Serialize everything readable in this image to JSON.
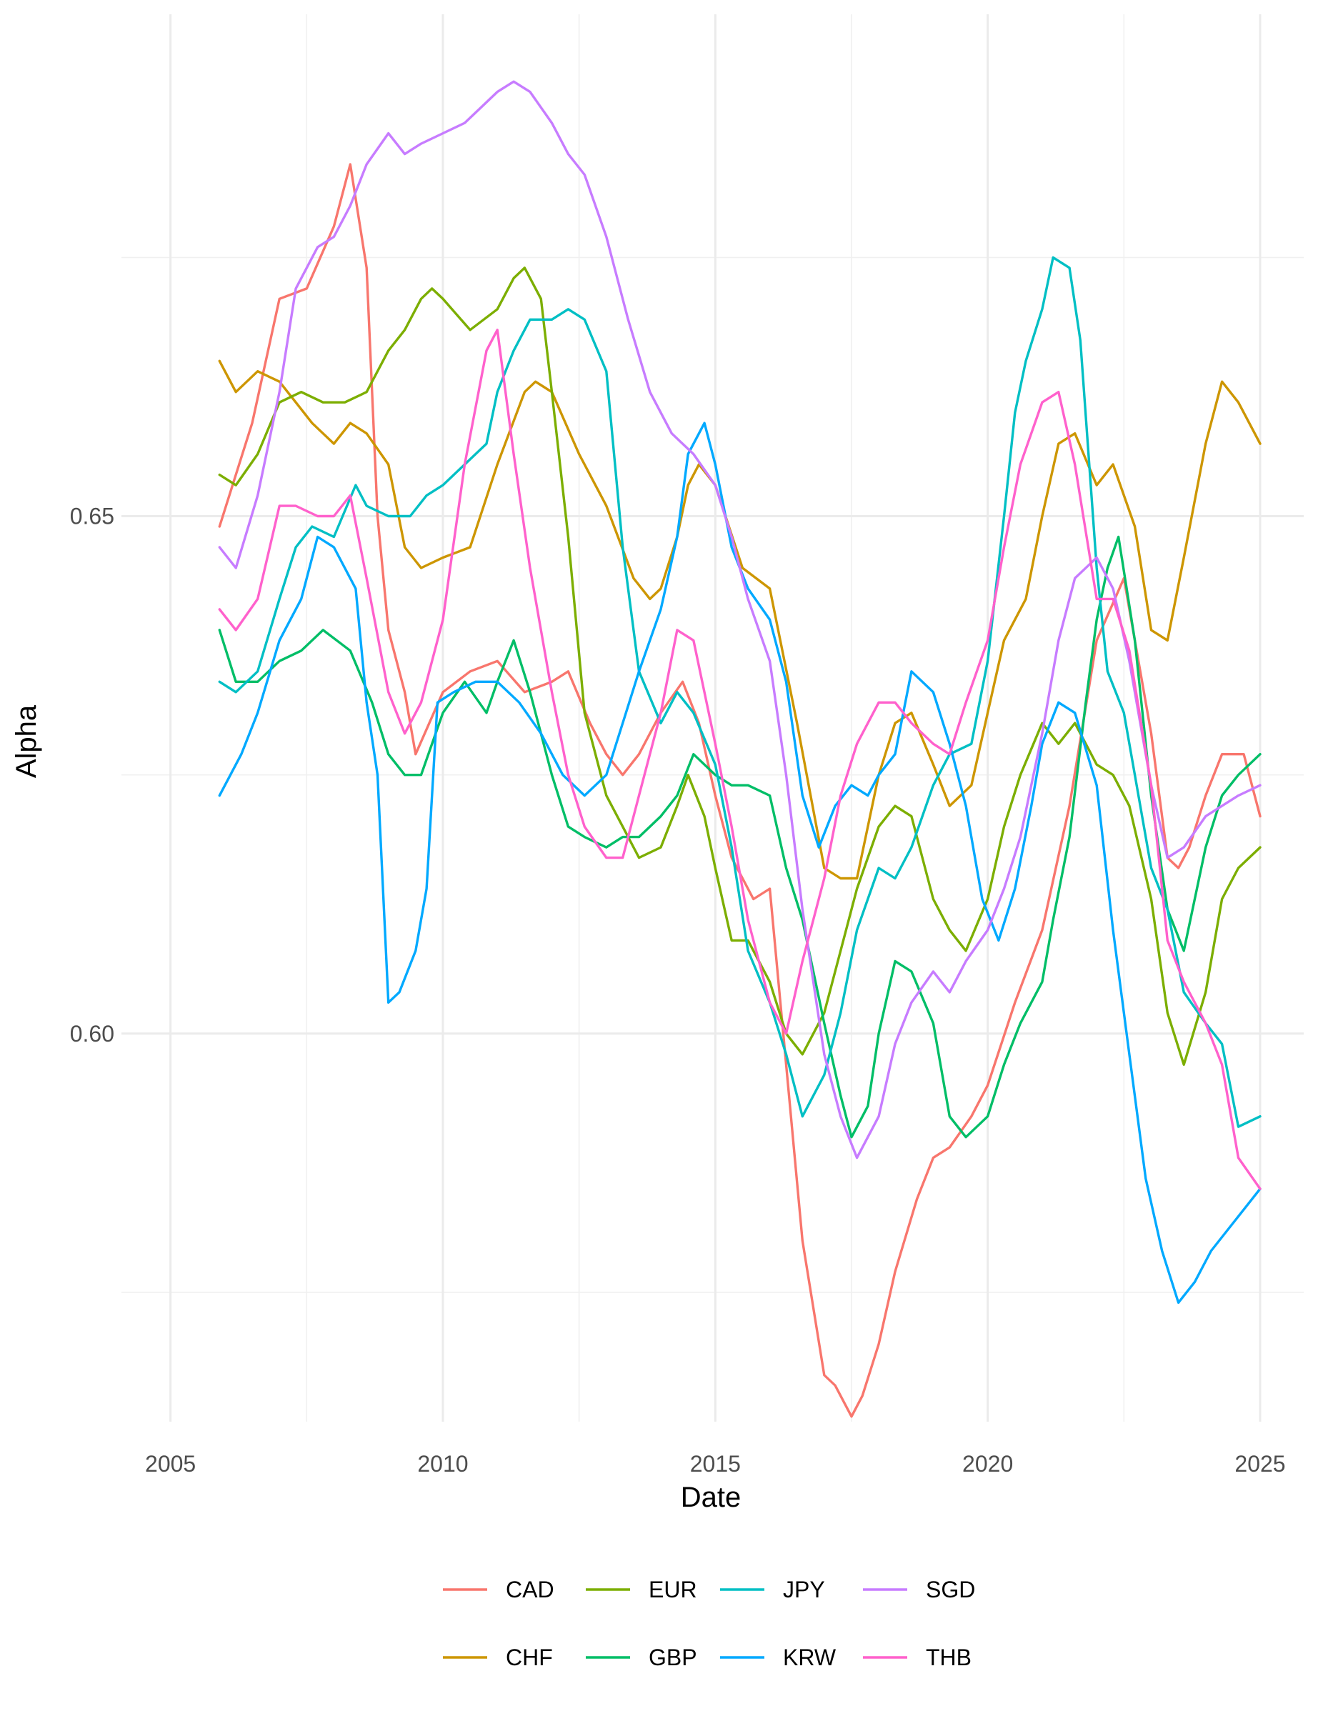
{
  "chart_data": {
    "type": "line",
    "title": "",
    "xlabel": "Date",
    "ylabel": "Alpha",
    "xlim": [
      2004.1,
      2025.8
    ],
    "ylim": [
      0.5625,
      0.6985
    ],
    "x_ticks": [
      2005,
      2010,
      2015,
      2020,
      2025
    ],
    "x_tick_labels": [
      "2005",
      "2010",
      "2015",
      "2020",
      "2025"
    ],
    "y_ticks": [
      0.6,
      0.65
    ],
    "y_tick_labels": [
      "0.60",
      "0.65"
    ],
    "grid": true,
    "legend_position": "bottom",
    "series": [
      {
        "name": "CAD",
        "color": "#F8766D",
        "x": [
          2005.9,
          2006.5,
          2007.0,
          2007.5,
          2008.0,
          2008.3,
          2008.6,
          2008.8,
          2009.0,
          2009.3,
          2009.5,
          2010.0,
          2010.5,
          2011.0,
          2011.5,
          2012.0,
          2012.3,
          2012.7,
          2013.0,
          2013.3,
          2013.6,
          2014.0,
          2014.4,
          2014.7,
          2015.0,
          2015.3,
          2015.7,
          2016.0,
          2016.3,
          2016.6,
          2017.0,
          2017.2,
          2017.5,
          2017.7,
          2018.0,
          2018.3,
          2018.7,
          2019.0,
          2019.3,
          2019.7,
          2020.0,
          2020.5,
          2021.0,
          2021.5,
          2022.0,
          2022.5,
          2023.0,
          2023.3,
          2023.5,
          2023.7,
          2024.0,
          2024.3,
          2024.7,
          2025.0
        ],
        "y": [
          0.649,
          0.659,
          0.671,
          0.672,
          0.678,
          0.684,
          0.674,
          0.65,
          0.639,
          0.633,
          0.627,
          0.633,
          0.635,
          0.636,
          0.633,
          0.634,
          0.635,
          0.63,
          0.627,
          0.625,
          0.627,
          0.631,
          0.634,
          0.63,
          0.623,
          0.617,
          0.613,
          0.614,
          0.597,
          0.58,
          0.567,
          0.566,
          0.563,
          0.565,
          0.57,
          0.577,
          0.584,
          0.588,
          0.589,
          0.592,
          0.595,
          0.603,
          0.61,
          0.622,
          0.638,
          0.644,
          0.629,
          0.617,
          0.616,
          0.618,
          0.623,
          0.627,
          0.627,
          0.621
        ]
      },
      {
        "name": "CHF",
        "color": "#C49A00",
        "x": [
          2005.9,
          2006.2,
          2006.6,
          2007.0,
          2007.3,
          2007.6,
          2008.0,
          2008.3,
          2008.6,
          2009.0,
          2009.3,
          2009.6,
          2010.0,
          2010.5,
          2011.0,
          2011.5,
          2011.7,
          2012.0,
          2012.5,
          2013.0,
          2013.5,
          2013.8,
          2014.0,
          2014.3,
          2014.5,
          2014.7,
          2015.0,
          2015.5,
          2016.0,
          2016.5,
          2017.0,
          2017.3,
          2017.6,
          2018.0,
          2018.3,
          2018.6,
          2019.0,
          2019.3,
          2019.7,
          2020.0,
          2020.3,
          2020.7,
          2021.0,
          2021.3,
          2021.6,
          2022.0,
          2022.3,
          2022.7,
          2023.0,
          2023.3,
          2023.6,
          2024.0,
          2024.3,
          2024.6,
          2025.0
        ],
        "y": [
          0.665,
          0.662,
          0.664,
          0.663,
          0.661,
          0.659,
          0.657,
          0.659,
          0.658,
          0.655,
          0.647,
          0.645,
          0.646,
          0.647,
          0.655,
          0.662,
          0.663,
          0.662,
          0.656,
          0.651,
          0.644,
          0.642,
          0.643,
          0.648,
          0.653,
          0.655,
          0.653,
          0.645,
          0.643,
          0.63,
          0.616,
          0.615,
          0.615,
          0.625,
          0.63,
          0.631,
          0.626,
          0.622,
          0.624,
          0.631,
          0.638,
          0.642,
          0.65,
          0.657,
          0.658,
          0.653,
          0.655,
          0.649,
          0.639,
          0.638,
          0.646,
          0.657,
          0.663,
          0.661,
          0.657
        ]
      },
      {
        "name": "EUR",
        "color": "#53B400",
        "x": [
          2005.9,
          2006.2,
          2006.6,
          2007.0,
          2007.4,
          2007.8,
          2008.2,
          2008.6,
          2009.0,
          2009.3,
          2009.6,
          2009.8,
          2010.0,
          2010.5,
          2011.0,
          2011.3,
          2011.5,
          2011.8,
          2012.0,
          2012.3,
          2012.6,
          2013.0,
          2013.3,
          2013.6,
          2014.0,
          2014.3,
          2014.5,
          2014.8,
          2015.0,
          2015.3,
          2015.6,
          2016.0,
          2016.3,
          2016.6,
          2017.0,
          2017.3,
          2017.6,
          2018.0,
          2018.3,
          2018.6,
          2019.0,
          2019.3,
          2019.6,
          2020.0,
          2020.3,
          2020.6,
          2021.0,
          2021.3,
          2021.6,
          2022.0,
          2022.3,
          2022.6,
          2023.0,
          2023.3,
          2023.6,
          2024.0,
          2024.3,
          2024.6,
          2025.0
        ],
        "y": [
          0.654,
          0.653,
          0.656,
          0.661,
          0.662,
          0.661,
          0.661,
          0.662,
          0.666,
          0.668,
          0.671,
          0.672,
          0.671,
          0.668,
          0.67,
          0.673,
          0.674,
          0.671,
          0.662,
          0.648,
          0.631,
          0.623,
          0.62,
          0.617,
          0.618,
          0.622,
          0.625,
          0.621,
          0.616,
          0.609,
          0.609,
          0.605,
          0.6,
          0.598,
          0.602,
          0.608,
          0.614,
          0.62,
          0.622,
          0.621,
          0.613,
          0.61,
          0.608,
          0.613,
          0.62,
          0.625,
          0.63,
          0.628,
          0.63,
          0.626,
          0.625,
          0.622,
          0.613,
          0.602,
          0.597,
          0.604,
          0.613,
          0.616,
          0.618
        ]
      },
      {
        "name": "GBP",
        "color": "#00C094",
        "x": [
          2005.9,
          2006.2,
          2006.6,
          2007.0,
          2007.4,
          2007.8,
          2008.3,
          2008.7,
          2009.0,
          2009.3,
          2009.6,
          2010.0,
          2010.4,
          2010.8,
          2011.0,
          2011.3,
          2011.6,
          2012.0,
          2012.3,
          2012.6,
          2013.0,
          2013.3,
          2013.6,
          2014.0,
          2014.3,
          2014.6,
          2015.0,
          2015.3,
          2015.6,
          2016.0,
          2016.3,
          2016.6,
          2017.0,
          2017.3,
          2017.5,
          2017.8,
          2018.0,
          2018.3,
          2018.6,
          2019.0,
          2019.3,
          2019.6,
          2020.0,
          2020.3,
          2020.6,
          2021.0,
          2021.2,
          2021.5,
          2021.8,
          2022.0,
          2022.2,
          2022.4,
          2022.7,
          2023.0,
          2023.3,
          2023.6,
          2024.0,
          2024.3,
          2024.6,
          2025.0
        ],
        "y": [
          0.639,
          0.634,
          0.634,
          0.636,
          0.637,
          0.639,
          0.637,
          0.632,
          0.627,
          0.625,
          0.625,
          0.631,
          0.634,
          0.631,
          0.634,
          0.638,
          0.633,
          0.625,
          0.62,
          0.619,
          0.618,
          0.619,
          0.619,
          0.621,
          0.623,
          0.627,
          0.625,
          0.624,
          0.624,
          0.623,
          0.616,
          0.611,
          0.601,
          0.594,
          0.59,
          0.593,
          0.6,
          0.607,
          0.606,
          0.601,
          0.592,
          0.59,
          0.592,
          0.597,
          0.601,
          0.605,
          0.611,
          0.619,
          0.632,
          0.64,
          0.645,
          0.648,
          0.638,
          0.623,
          0.612,
          0.608,
          0.618,
          0.623,
          0.625,
          0.627
        ]
      },
      {
        "name": "JPY",
        "color": "#00B6EB",
        "x": [
          2005.9,
          2006.2,
          2006.6,
          2007.0,
          2007.3,
          2007.6,
          2008.0,
          2008.4,
          2008.6,
          2009.0,
          2009.4,
          2009.7,
          2010.0,
          2010.4,
          2010.8,
          2011.0,
          2011.3,
          2011.6,
          2012.0,
          2012.3,
          2012.6,
          2013.0,
          2013.3,
          2013.6,
          2014.0,
          2014.3,
          2014.6,
          2015.0,
          2015.3,
          2015.6,
          2016.0,
          2016.3,
          2016.6,
          2017.0,
          2017.3,
          2017.6,
          2018.0,
          2018.3,
          2018.6,
          2019.0,
          2019.3,
          2019.7,
          2020.0,
          2020.3,
          2020.5,
          2020.7,
          2021.0,
          2021.2,
          2021.5,
          2021.7,
          2022.0,
          2022.2,
          2022.5,
          2022.7,
          2023.0,
          2023.3,
          2023.6,
          2024.0,
          2024.3,
          2024.6,
          2025.0
        ],
        "y": [
          0.634,
          0.633,
          0.635,
          0.642,
          0.647,
          0.649,
          0.648,
          0.653,
          0.651,
          0.65,
          0.65,
          0.652,
          0.653,
          0.655,
          0.657,
          0.662,
          0.666,
          0.669,
          0.669,
          0.67,
          0.669,
          0.664,
          0.647,
          0.635,
          0.63,
          0.633,
          0.631,
          0.626,
          0.618,
          0.608,
          0.603,
          0.598,
          0.592,
          0.596,
          0.602,
          0.61,
          0.616,
          0.615,
          0.618,
          0.624,
          0.627,
          0.628,
          0.636,
          0.65,
          0.66,
          0.665,
          0.67,
          0.675,
          0.674,
          0.667,
          0.645,
          0.635,
          0.631,
          0.625,
          0.616,
          0.612,
          0.604,
          0.601,
          0.599,
          0.591,
          0.592
        ]
      },
      {
        "name": "KRW",
        "color": "#A58AFF",
        "legend_color": "#00A9FF",
        "draw_color": "#00A9FF",
        "x": [
          2005.9,
          2006.3,
          2006.6,
          2007.0,
          2007.4,
          2007.7,
          2008.0,
          2008.4,
          2008.6,
          2008.8,
          2009.0,
          2009.2,
          2009.5,
          2009.7,
          2009.9,
          2010.2,
          2010.6,
          2011.0,
          2011.4,
          2011.8,
          2012.2,
          2012.6,
          2013.0,
          2013.3,
          2013.6,
          2014.0,
          2014.3,
          2014.5,
          2014.8,
          2015.0,
          2015.3,
          2015.6,
          2016.0,
          2016.3,
          2016.6,
          2016.9,
          2017.2,
          2017.5,
          2017.8,
          2018.0,
          2018.3,
          2018.6,
          2019.0,
          2019.3,
          2019.6,
          2019.9,
          2020.2,
          2020.5,
          2020.8,
          2021.0,
          2021.3,
          2021.6,
          2022.0,
          2022.3,
          2022.6,
          2022.9,
          2023.2,
          2023.5,
          2023.8,
          2024.1,
          2024.4,
          2024.7,
          2025.0
        ],
        "y": [
          0.623,
          0.627,
          0.631,
          0.638,
          0.642,
          0.648,
          0.647,
          0.643,
          0.632,
          0.625,
          0.603,
          0.604,
          0.608,
          0.614,
          0.632,
          0.633,
          0.634,
          0.634,
          0.632,
          0.629,
          0.625,
          0.623,
          0.625,
          0.63,
          0.635,
          0.641,
          0.648,
          0.656,
          0.659,
          0.655,
          0.647,
          0.643,
          0.64,
          0.634,
          0.623,
          0.618,
          0.622,
          0.624,
          0.623,
          0.625,
          0.627,
          0.635,
          0.633,
          0.628,
          0.622,
          0.613,
          0.609,
          0.614,
          0.622,
          0.628,
          0.632,
          0.631,
          0.624,
          0.61,
          0.598,
          0.586,
          0.579,
          0.574,
          0.576,
          0.579,
          0.581,
          0.583,
          0.585
        ]
      },
      {
        "name": "SGD",
        "color": "#A58AFF",
        "x": [
          2005.9,
          2006.2,
          2006.6,
          2007.0,
          2007.3,
          2007.7,
          2008.0,
          2008.3,
          2008.6,
          2009.0,
          2009.3,
          2009.6,
          2010.0,
          2010.4,
          2010.8,
          2011.0,
          2011.3,
          2011.6,
          2012.0,
          2012.3,
          2012.6,
          2013.0,
          2013.4,
          2013.8,
          2014.2,
          2014.6,
          2015.0,
          2015.3,
          2015.6,
          2016.0,
          2016.3,
          2016.6,
          2017.0,
          2017.3,
          2017.6,
          2018.0,
          2018.3,
          2018.6,
          2019.0,
          2019.3,
          2019.6,
          2020.0,
          2020.3,
          2020.6,
          2021.0,
          2021.3,
          2021.6,
          2022.0,
          2022.3,
          2022.6,
          2023.0,
          2023.3,
          2023.6,
          2024.0,
          2024.3,
          2024.6,
          2025.0
        ],
        "y": [
          0.647,
          0.645,
          0.652,
          0.662,
          0.672,
          0.676,
          0.677,
          0.68,
          0.684,
          0.687,
          0.685,
          0.686,
          0.687,
          0.688,
          0.69,
          0.691,
          0.692,
          0.691,
          0.688,
          0.685,
          0.683,
          0.677,
          0.669,
          0.662,
          0.658,
          0.656,
          0.653,
          0.648,
          0.642,
          0.636,
          0.625,
          0.612,
          0.598,
          0.592,
          0.588,
          0.592,
          0.599,
          0.603,
          0.606,
          0.604,
          0.607,
          0.61,
          0.614,
          0.619,
          0.629,
          0.638,
          0.644,
          0.646,
          0.643,
          0.636,
          0.624,
          0.617,
          0.618,
          0.621,
          0.622,
          0.623,
          0.624
        ]
      },
      {
        "name": "THB",
        "color": "#FB61D7",
        "x": [
          2005.9,
          2006.2,
          2006.6,
          2007.0,
          2007.3,
          2007.7,
          2008.0,
          2008.3,
          2008.6,
          2009.0,
          2009.3,
          2009.6,
          2010.0,
          2010.4,
          2010.8,
          2011.0,
          2011.3,
          2011.6,
          2012.0,
          2012.3,
          2012.6,
          2013.0,
          2013.3,
          2013.6,
          2014.0,
          2014.3,
          2014.6,
          2015.0,
          2015.3,
          2015.6,
          2016.0,
          2016.3,
          2016.6,
          2017.0,
          2017.3,
          2017.6,
          2018.0,
          2018.3,
          2018.6,
          2019.0,
          2019.3,
          2019.6,
          2020.0,
          2020.3,
          2020.6,
          2021.0,
          2021.3,
          2021.6,
          2022.0,
          2022.3,
          2022.6,
          2023.0,
          2023.3,
          2023.6,
          2024.0,
          2024.3,
          2024.6,
          2025.0
        ],
        "y": [
          0.641,
          0.639,
          0.642,
          0.651,
          0.651,
          0.65,
          0.65,
          0.652,
          0.644,
          0.633,
          0.629,
          0.632,
          0.64,
          0.655,
          0.666,
          0.668,
          0.656,
          0.645,
          0.633,
          0.625,
          0.62,
          0.617,
          0.617,
          0.623,
          0.631,
          0.639,
          0.638,
          0.628,
          0.62,
          0.611,
          0.603,
          0.6,
          0.607,
          0.615,
          0.623,
          0.628,
          0.632,
          0.632,
          0.63,
          0.628,
          0.627,
          0.632,
          0.638,
          0.647,
          0.655,
          0.661,
          0.662,
          0.655,
          0.642,
          0.642,
          0.637,
          0.624,
          0.609,
          0.605,
          0.601,
          0.597,
          0.588,
          0.585
        ]
      }
    ]
  },
  "legend": {
    "row1": [
      {
        "label": "CAD",
        "color": "#F8766D"
      },
      {
        "label": "EUR",
        "color": "#7CAE00"
      },
      {
        "label": "JPY",
        "color": "#00BFC4"
      },
      {
        "label": "SGD",
        "color": "#C77CFF"
      }
    ],
    "row2": [
      {
        "label": "CHF",
        "color": "#CD9600"
      },
      {
        "label": "GBP",
        "color": "#00BE67"
      },
      {
        "label": "KRW",
        "color": "#00A9FF"
      },
      {
        "label": "THB",
        "color": "#FF61CC"
      }
    ]
  }
}
